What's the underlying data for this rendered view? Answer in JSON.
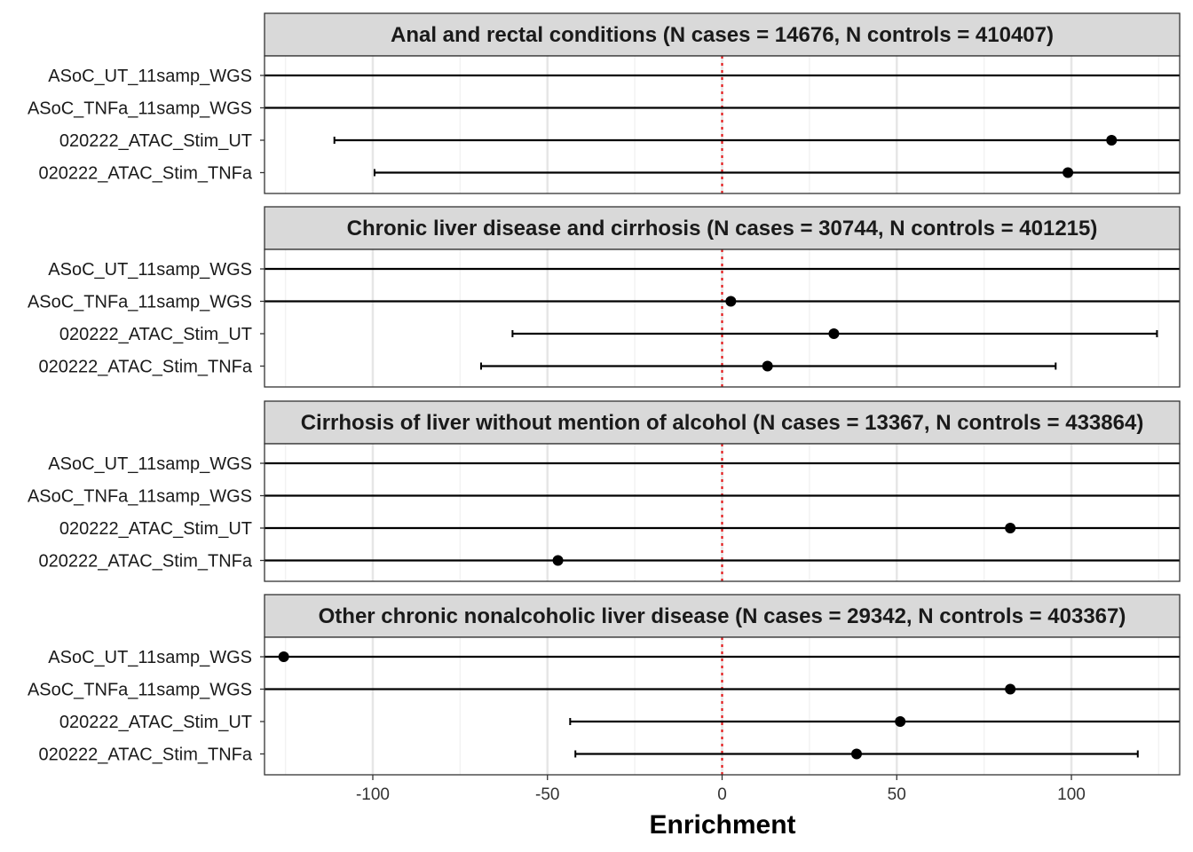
{
  "chart_data": {
    "type": "forest",
    "xlabel": "Enrichment",
    "xlim": [
      -131,
      131
    ],
    "xticks": [
      -100,
      -50,
      0,
      50,
      100
    ],
    "xtick_labels": [
      "-100",
      "-50",
      "0",
      "50",
      "100"
    ],
    "reference_line": 0,
    "reference_color": "#e41a1c",
    "categories": [
      "ASoC_UT_11samp_WGS",
      "ASoC_TNFa_11samp_WGS",
      "020222_ATAC_Stim_UT",
      "020222_ATAC_Stim_TNFa"
    ],
    "panels": [
      {
        "title": "Anal and rectal conditions (N cases = 14676, N controls = 410407)",
        "rows": [
          {
            "label": "ASoC_UT_11samp_WGS",
            "estimate": null,
            "lower": null,
            "upper": null
          },
          {
            "label": "ASoC_TNFa_11samp_WGS",
            "estimate": null,
            "lower": null,
            "upper": null
          },
          {
            "label": "020222_ATAC_Stim_UT",
            "estimate": 111.5,
            "lower": -111,
            "upper": null
          },
          {
            "label": "020222_ATAC_Stim_TNFa",
            "estimate": 99,
            "lower": -99.5,
            "upper": null
          }
        ]
      },
      {
        "title": "Chronic liver disease and cirrhosis (N cases = 30744, N controls = 401215)",
        "rows": [
          {
            "label": "ASoC_UT_11samp_WGS",
            "estimate": null,
            "lower": null,
            "upper": null
          },
          {
            "label": "ASoC_TNFa_11samp_WGS",
            "estimate": 2.5,
            "lower": null,
            "upper": null
          },
          {
            "label": "020222_ATAC_Stim_UT",
            "estimate": 32,
            "lower": -60,
            "upper": 124.5
          },
          {
            "label": "020222_ATAC_Stim_TNFa",
            "estimate": 13,
            "lower": -69,
            "upper": 95.5
          }
        ]
      },
      {
        "title": "Cirrhosis of liver without mention of alcohol (N cases = 13367, N controls = 433864)",
        "rows": [
          {
            "label": "ASoC_UT_11samp_WGS",
            "estimate": null,
            "lower": null,
            "upper": null
          },
          {
            "label": "ASoC_TNFa_11samp_WGS",
            "estimate": null,
            "lower": null,
            "upper": null
          },
          {
            "label": "020222_ATAC_Stim_UT",
            "estimate": 82.5,
            "lower": null,
            "upper": null
          },
          {
            "label": "020222_ATAC_Stim_TNFa",
            "estimate": -47,
            "lower": null,
            "upper": null
          }
        ]
      },
      {
        "title": "Other chronic nonalcoholic liver disease (N cases = 29342, N controls = 403367)",
        "rows": [
          {
            "label": "ASoC_UT_11samp_WGS",
            "estimate": -125.5,
            "lower": null,
            "upper": null
          },
          {
            "label": "ASoC_TNFa_11samp_WGS",
            "estimate": 82.5,
            "lower": null,
            "upper": null
          },
          {
            "label": "020222_ATAC_Stim_UT",
            "estimate": 51,
            "lower": -43.5,
            "upper": null
          },
          {
            "label": "020222_ATAC_Stim_TNFa",
            "estimate": 38.5,
            "lower": -42,
            "upper": 119
          }
        ]
      }
    ]
  }
}
